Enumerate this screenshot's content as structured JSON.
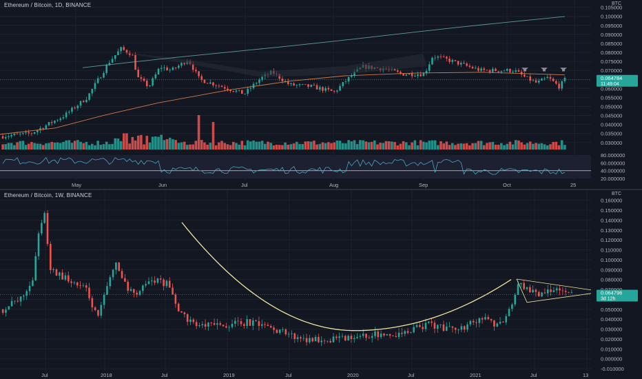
{
  "colors": {
    "background": "#131722",
    "grid": "#1e222d",
    "axis_text": "#b2b5be",
    "up": "#26a69a",
    "down": "#ef5350",
    "ma_long": "#5d9e9a",
    "ma_short": "#d27d4a",
    "rsi": "#4aa8c4",
    "curve": "#f0e6a0",
    "price_badge": "#26a69a"
  },
  "top": {
    "title": "Ethereum / Bitcoin, 1D, BINANCE",
    "currency": "BTC",
    "price_tag": "0.064784",
    "price_countdown": "11:49:04",
    "y_ticks": [
      "0.105000",
      "0.100000",
      "0.095000",
      "0.090000",
      "0.085000",
      "0.080000",
      "0.075000",
      "0.070000",
      "0.065000",
      "0.060000",
      "0.055000",
      "0.050000",
      "0.045000",
      "0.040000",
      "0.035000",
      "0.030000"
    ],
    "rsi_ticks": [
      "80.000000",
      "60.000000",
      "40.000000",
      "20.000000"
    ],
    "x_labels": [
      "May",
      "Jun",
      "Jul",
      "Aug",
      "Sep",
      "Oct",
      "25"
    ]
  },
  "bottom": {
    "title": "Ethereum / Bitcoin, 1W, BINANCE",
    "currency": "BTC",
    "price_tag": "0.064796",
    "price_countdown": "3d 12h",
    "y_ticks": [
      "0.160000",
      "0.150000",
      "0.140000",
      "0.130000",
      "0.120000",
      "0.110000",
      "0.100000",
      "0.090000",
      "0.080000",
      "0.070000",
      "0.060000",
      "0.050000",
      "0.040000",
      "0.030000",
      "0.020000",
      "0.010000",
      "0.000000",
      "-0.010000"
    ],
    "x_labels": [
      "Jul",
      "2018",
      "Jul",
      "2019",
      "Jul",
      "2020",
      "Jul",
      "2021",
      "Jul",
      "13"
    ]
  },
  "chart_data": [
    {
      "type": "candlestick",
      "title": "Ethereum / Bitcoin, 1D, BINANCE",
      "ylabel": "BTC",
      "ylim": [
        0.028,
        0.106
      ],
      "x_labels": [
        "May",
        "Jun",
        "Jul",
        "Aug",
        "Sep",
        "Oct",
        "25"
      ],
      "anchors": [
        {
          "t": 0,
          "v": 0.0335
        },
        {
          "t": 10,
          "v": 0.035
        },
        {
          "t": 22,
          "v": 0.045
        },
        {
          "t": 30,
          "v": 0.055
        },
        {
          "t": 38,
          "v": 0.075
        },
        {
          "t": 42,
          "v": 0.082
        },
        {
          "t": 46,
          "v": 0.079
        },
        {
          "t": 48,
          "v": 0.066
        },
        {
          "t": 52,
          "v": 0.061
        },
        {
          "t": 56,
          "v": 0.072
        },
        {
          "t": 60,
          "v": 0.07
        },
        {
          "t": 66,
          "v": 0.076
        },
        {
          "t": 70,
          "v": 0.065
        },
        {
          "t": 78,
          "v": 0.061
        },
        {
          "t": 86,
          "v": 0.057
        },
        {
          "t": 92,
          "v": 0.066
        },
        {
          "t": 96,
          "v": 0.069
        },
        {
          "t": 102,
          "v": 0.062
        },
        {
          "t": 110,
          "v": 0.061
        },
        {
          "t": 118,
          "v": 0.058
        },
        {
          "t": 124,
          "v": 0.067
        },
        {
          "t": 128,
          "v": 0.072
        },
        {
          "t": 136,
          "v": 0.071
        },
        {
          "t": 142,
          "v": 0.068
        },
        {
          "t": 150,
          "v": 0.068
        },
        {
          "t": 153,
          "v": 0.078
        },
        {
          "t": 158,
          "v": 0.076
        },
        {
          "t": 164,
          "v": 0.073
        },
        {
          "t": 170,
          "v": 0.07
        },
        {
          "t": 176,
          "v": 0.07
        },
        {
          "t": 182,
          "v": 0.07
        },
        {
          "t": 186,
          "v": 0.066
        },
        {
          "t": 190,
          "v": 0.063
        },
        {
          "t": 194,
          "v": 0.066
        },
        {
          "t": 198,
          "v": 0.061
        },
        {
          "t": 200,
          "v": 0.0648
        }
      ],
      "overlays": [
        "200-day moving average (teal)",
        "50-day moving average (orange)",
        "volume histogram",
        "RSI 14 with 40 level"
      ],
      "last_price": 0.064784
    },
    {
      "type": "candlestick",
      "title": "Ethereum / Bitcoin, 1W, BINANCE",
      "ylabel": "BTC",
      "ylim": [
        -0.012,
        0.166
      ],
      "x_labels": [
        "Jul",
        "2018",
        "Jul",
        "2019",
        "Jul",
        "2020",
        "Jul",
        "2021",
        "Jul",
        "13"
      ],
      "anchors": [
        {
          "t": 0,
          "v": 0.05
        },
        {
          "t": 6,
          "v": 0.06
        },
        {
          "t": 10,
          "v": 0.08
        },
        {
          "t": 12,
          "v": 0.125
        },
        {
          "t": 14,
          "v": 0.15
        },
        {
          "t": 16,
          "v": 0.09
        },
        {
          "t": 22,
          "v": 0.08
        },
        {
          "t": 28,
          "v": 0.07
        },
        {
          "t": 32,
          "v": 0.04
        },
        {
          "t": 36,
          "v": 0.08
        },
        {
          "t": 38,
          "v": 0.1
        },
        {
          "t": 40,
          "v": 0.08
        },
        {
          "t": 44,
          "v": 0.065
        },
        {
          "t": 50,
          "v": 0.08
        },
        {
          "t": 56,
          "v": 0.075
        },
        {
          "t": 60,
          "v": 0.045
        },
        {
          "t": 66,
          "v": 0.033
        },
        {
          "t": 76,
          "v": 0.034
        },
        {
          "t": 82,
          "v": 0.037
        },
        {
          "t": 90,
          "v": 0.032
        },
        {
          "t": 100,
          "v": 0.02
        },
        {
          "t": 110,
          "v": 0.02
        },
        {
          "t": 118,
          "v": 0.02
        },
        {
          "t": 126,
          "v": 0.025
        },
        {
          "t": 134,
          "v": 0.025
        },
        {
          "t": 144,
          "v": 0.035
        },
        {
          "t": 150,
          "v": 0.03
        },
        {
          "t": 156,
          "v": 0.033
        },
        {
          "t": 162,
          "v": 0.04
        },
        {
          "t": 166,
          "v": 0.035
        },
        {
          "t": 170,
          "v": 0.04
        },
        {
          "t": 174,
          "v": 0.075
        },
        {
          "t": 180,
          "v": 0.065
        },
        {
          "t": 184,
          "v": 0.07
        },
        {
          "t": 188,
          "v": 0.072
        },
        {
          "t": 192,
          "v": 0.0648
        }
      ],
      "overlays": [
        "rounded-bottom curve",
        "symmetrical triangle"
      ],
      "last_price": 0.064796
    }
  ]
}
